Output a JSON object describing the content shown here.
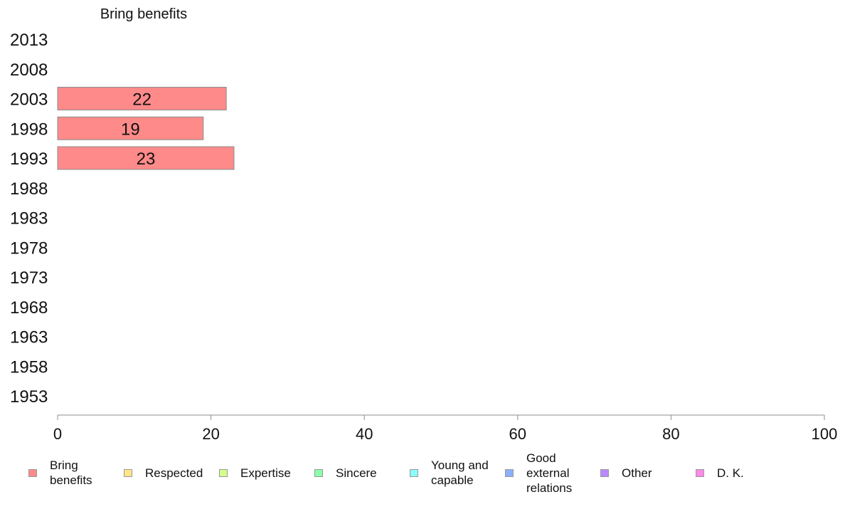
{
  "chart_data": {
    "type": "bar",
    "orientation": "horizontal",
    "stacked": true,
    "title": "Bring benefits",
    "xlabel": "",
    "ylabel": "",
    "xlim": [
      0,
      100
    ],
    "x_ticks": [
      0,
      20,
      40,
      60,
      80,
      100
    ],
    "categories": [
      "2013",
      "2008",
      "2003",
      "1998",
      "1993",
      "1988",
      "1983",
      "1978",
      "1973",
      "1968",
      "1963",
      "1958",
      "1953"
    ],
    "series": [
      {
        "name": "Bring\nbenefits",
        "color": "#ff8a8a",
        "values": [
          null,
          null,
          22,
          19,
          23,
          null,
          null,
          null,
          null,
          null,
          null,
          null,
          null
        ]
      },
      {
        "name": "Respected",
        "color": "#ffe48a",
        "values": [
          null,
          null,
          null,
          null,
          null,
          null,
          null,
          null,
          null,
          null,
          null,
          null,
          null
        ]
      },
      {
        "name": "Expertise",
        "color": "#d4ff8a",
        "values": [
          null,
          null,
          null,
          null,
          null,
          null,
          null,
          null,
          null,
          null,
          null,
          null,
          null
        ]
      },
      {
        "name": "Sincere",
        "color": "#8affa8",
        "values": [
          null,
          null,
          null,
          null,
          null,
          null,
          null,
          null,
          null,
          null,
          null,
          null,
          null
        ]
      },
      {
        "name": "Young and\ncapable",
        "color": "#8affff",
        "values": [
          null,
          null,
          null,
          null,
          null,
          null,
          null,
          null,
          null,
          null,
          null,
          null,
          null
        ]
      },
      {
        "name": "Good\nexternal\nrelations",
        "color": "#8ab0ff",
        "values": [
          null,
          null,
          null,
          null,
          null,
          null,
          null,
          null,
          null,
          null,
          null,
          null,
          null
        ]
      },
      {
        "name": "Other",
        "color": "#bb8aff",
        "values": [
          null,
          null,
          null,
          null,
          null,
          null,
          null,
          null,
          null,
          null,
          null,
          null,
          null
        ]
      },
      {
        "name": "D. K.",
        "color": "#ff8ae8",
        "values": [
          null,
          null,
          null,
          null,
          null,
          null,
          null,
          null,
          null,
          null,
          null,
          null,
          null
        ]
      }
    ],
    "grid": false,
    "legend_position": "bottom"
  }
}
